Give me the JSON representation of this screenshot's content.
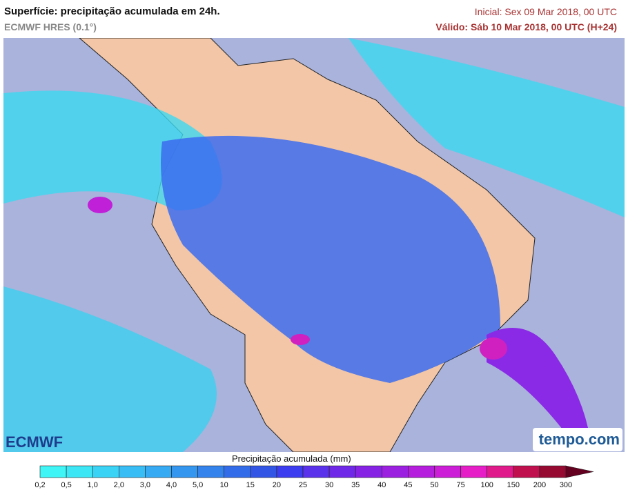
{
  "header": {
    "title": "Superfície: precipitação acumulada em 24h.",
    "subtitle": "ECMWF HRES (0.1°)",
    "initial": "Inicial: Sex 09 Mar 2018, 00 UTC",
    "valid": "Válido: Sáb 10 Mar 2018, 00 UTC (H+24)"
  },
  "logos": {
    "left": "ECMWF",
    "right": "tempo.com"
  },
  "legend": {
    "title": "Precipitação acumulada (mm)",
    "labels": [
      "0,2",
      "0,5",
      "1,0",
      "2,0",
      "3,0",
      "4,0",
      "5,0",
      "10",
      "15",
      "20",
      "25",
      "30",
      "35",
      "40",
      "45",
      "50",
      "75",
      "100",
      "150",
      "200",
      "300"
    ],
    "colors": [
      "#3ff5f5",
      "#3ce6f5",
      "#3ad2f5",
      "#38bef5",
      "#36aaf2",
      "#3596ef",
      "#3482ec",
      "#336ce9",
      "#3355e6",
      "#3c3cf0",
      "#5a32ec",
      "#7028e8",
      "#8622e4",
      "#9c20e0",
      "#b41edc",
      "#cc1ed6",
      "#e61ec8",
      "#e01a8a",
      "#c0104e",
      "#960a32",
      "#640020"
    ]
  }
}
